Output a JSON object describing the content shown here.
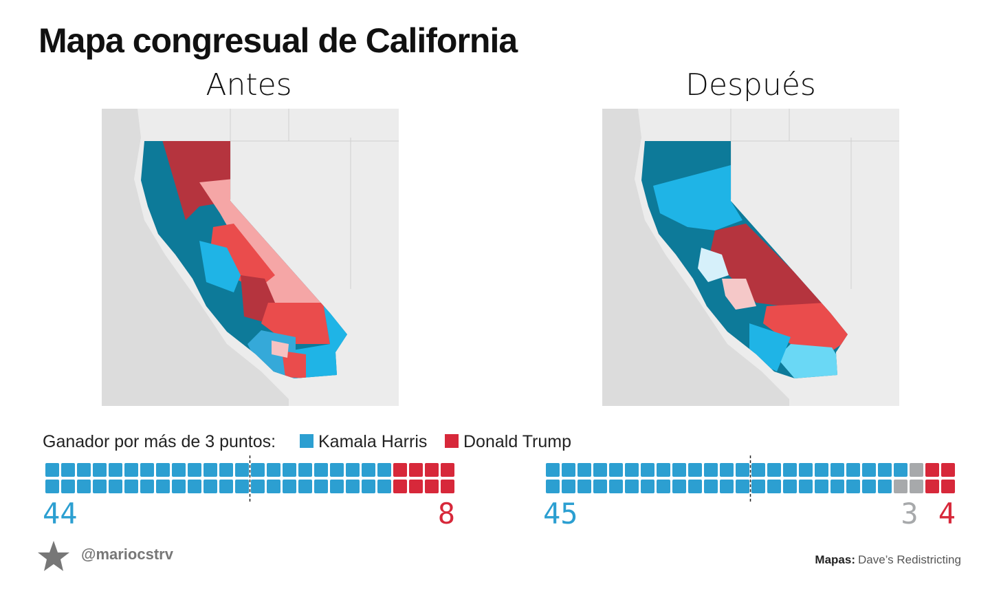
{
  "header": {
    "title": "Mapa congresual de California"
  },
  "legend_label": "Ganador por más de 3 puntos:",
  "chart_data": [
    {
      "type": "waffle",
      "title": "Antes",
      "series": [
        {
          "name": "Kamala Harris",
          "color": "#2c9fd1",
          "values": [
            44
          ]
        },
        {
          "name": "Donald Trump",
          "color": "#d7283a",
          "values": [
            8
          ]
        }
      ]
    },
    {
      "type": "waffle",
      "title": "Después",
      "series": [
        {
          "color": "#2c9fd1",
          "values": [
            45
          ]
        },
        {
          "color": "#a7a9ab",
          "values": [
            3
          ]
        },
        {
          "color": "#d7283a",
          "values": [
            4
          ]
        }
      ]
    }
  ],
  "footer": {
    "handle": "@mariocstrv",
    "source_label": "Mapas:",
    "source": "Dave’s Redistricting"
  }
}
